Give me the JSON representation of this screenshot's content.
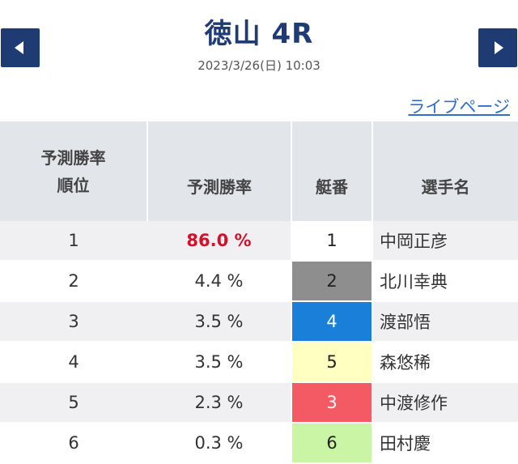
{
  "header": {
    "title": "徳山 4R",
    "datetime": "2023/3/26(日) 10:03"
  },
  "live_link": "ライブページ",
  "table": {
    "headers": {
      "rank_line1": "予測勝率",
      "rank_line2": "順位",
      "prob": "予測勝率",
      "boat": "艇番",
      "name": "選手名"
    },
    "rows": [
      {
        "rank": "1",
        "prob": "86.0 %",
        "boat": "1",
        "name": "中岡正彦",
        "boat_bg": "#ffffff",
        "boat_fg": "#222222",
        "highlight": true
      },
      {
        "rank": "2",
        "prob": "4.4 %",
        "boat": "2",
        "name": "北川幸典",
        "boat_bg": "#8e8e8e",
        "boat_fg": "#222222",
        "highlight": false
      },
      {
        "rank": "3",
        "prob": "3.5 %",
        "boat": "4",
        "name": "渡部悟",
        "boat_bg": "#1a7fd8",
        "boat_fg": "#ffffff",
        "highlight": false
      },
      {
        "rank": "4",
        "prob": "3.5 %",
        "boat": "5",
        "name": "森悠稀",
        "boat_bg": "#ffffc2",
        "boat_fg": "#222222",
        "highlight": false
      },
      {
        "rank": "5",
        "prob": "2.3 %",
        "boat": "3",
        "name": "中渡修作",
        "boat_bg": "#f45a63",
        "boat_fg": "#ffffff",
        "highlight": false
      },
      {
        "rank": "6",
        "prob": "0.3 %",
        "boat": "6",
        "name": "田村慶",
        "boat_bg": "#c9f5a5",
        "boat_fg": "#222222",
        "highlight": false
      }
    ]
  },
  "colors": {
    "brand_navy": "#1f3b73",
    "link_blue": "#2f6fd0",
    "highlight_red": "#d4102a"
  },
  "icons": {
    "prev": "arrow-left-icon",
    "next": "arrow-right-icon"
  }
}
